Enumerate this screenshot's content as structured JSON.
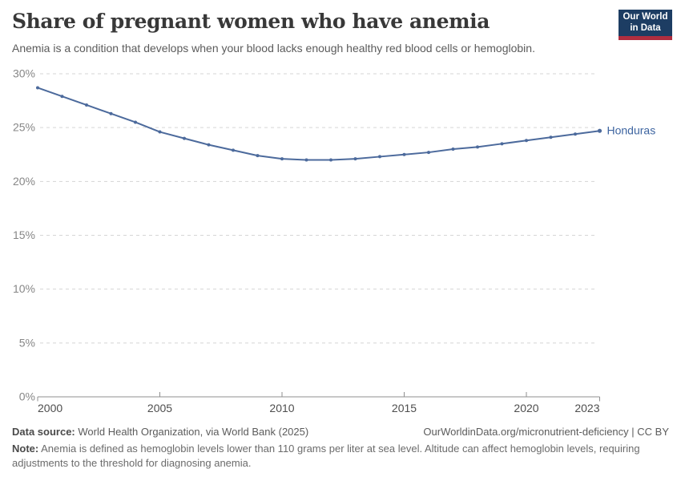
{
  "header": {
    "title": "Share of pregnant women who have anemia",
    "subtitle": "Anemia is a condition that develops when your blood lacks enough healthy red blood cells or hemoglobin."
  },
  "logo": {
    "line1": "Our World",
    "line2": "in Data",
    "bg_color": "#1d3d63",
    "stripe_color": "#b02e3f"
  },
  "chart_data": {
    "type": "line",
    "title": "Share of pregnant women who have anemia",
    "entity": "Honduras",
    "x": [
      2000,
      2001,
      2002,
      2003,
      2004,
      2005,
      2006,
      2007,
      2008,
      2009,
      2010,
      2011,
      2012,
      2013,
      2014,
      2015,
      2016,
      2017,
      2018,
      2019,
      2020,
      2021,
      2022,
      2023
    ],
    "series": [
      {
        "name": "Honduras",
        "values": [
          28.7,
          27.9,
          27.1,
          26.3,
          25.5,
          24.6,
          24.0,
          23.4,
          22.9,
          22.4,
          22.1,
          22.0,
          22.0,
          22.1,
          22.3,
          22.5,
          22.7,
          23.0,
          23.2,
          23.5,
          23.8,
          24.1,
          24.4,
          24.7
        ]
      }
    ],
    "xlim": [
      2000,
      2023
    ],
    "ylim": [
      0,
      30
    ],
    "yticks": [
      0,
      5,
      10,
      15,
      20,
      25,
      30
    ],
    "xticks": [
      2000,
      2005,
      2010,
      2015,
      2020,
      2023
    ],
    "y_tick_suffix": "%",
    "grid": "horizontal-dashed",
    "legend_position": "end-of-line-label",
    "line_color": "#4c6a9c",
    "series_label_color": "#3d64a0"
  },
  "footer": {
    "data_source_label": "Data source:",
    "data_source": "World Health Organization, via World Bank (2025)",
    "link": "OurWorldinData.org/micronutrient-deficiency | CC BY",
    "note_label": "Note:",
    "note": "Anemia is defined as hemoglobin levels lower than 110 grams per liter at sea level. Altitude can affect hemoglobin levels, requiring adjustments to the threshold for diagnosing anemia."
  }
}
